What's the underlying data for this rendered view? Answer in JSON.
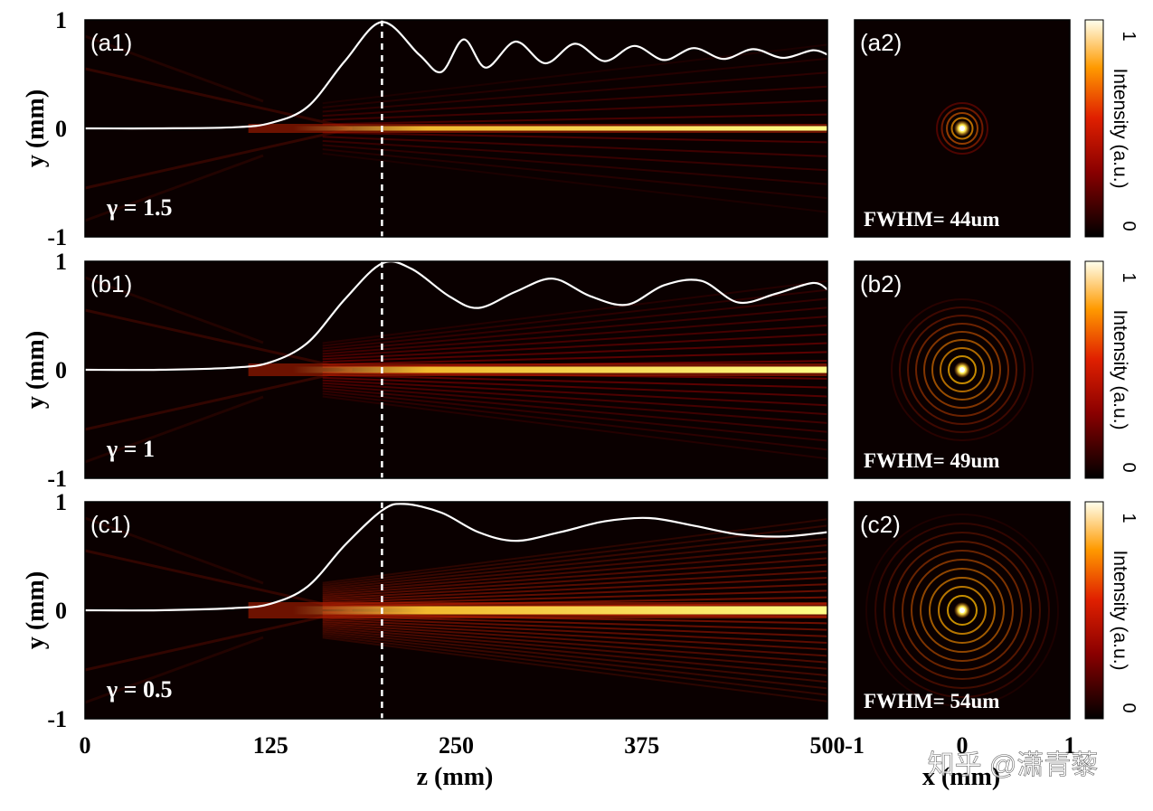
{
  "figure": {
    "xlabel": "z (mm)",
    "ylabel": "y (mm)",
    "x2label": "x (mm)",
    "colorbar_label": "Intensity (a.u.)",
    "watermark": "知乎 @潇青藜"
  },
  "chart_data": [
    {
      "type": "heatmap",
      "panel": "(a1)",
      "annotation": "γ = 1.5",
      "gamma": 1.5,
      "xlabel": "z (mm)",
      "ylabel": "y (mm)",
      "xlim": [
        0,
        500
      ],
      "ylim": [
        -1,
        1
      ],
      "xticks": [
        "0",
        "125",
        "250",
        "375",
        "500"
      ],
      "yticks": [
        "1",
        "0",
        "-1"
      ],
      "marker_line_z": 200,
      "colormap": "hot",
      "overlay_curve": {
        "description": "normalized on-axis intensity",
        "z": [
          0,
          50,
          100,
          125,
          150,
          175,
          200,
          225,
          240,
          255,
          270,
          290,
          310,
          330,
          350,
          370,
          390,
          410,
          430,
          450,
          470,
          490,
          500
        ],
        "y": [
          0,
          0,
          0.01,
          0.05,
          0.2,
          0.62,
          0.98,
          0.68,
          0.52,
          0.82,
          0.56,
          0.8,
          0.6,
          0.78,
          0.62,
          0.76,
          0.63,
          0.74,
          0.64,
          0.73,
          0.65,
          0.72,
          0.68
        ]
      }
    },
    {
      "type": "heatmap",
      "panel": "(b1)",
      "annotation": "γ = 1",
      "gamma": 1,
      "xlabel": "z (mm)",
      "ylabel": "y (mm)",
      "xlim": [
        0,
        500
      ],
      "ylim": [
        -1,
        1
      ],
      "xticks": [
        "0",
        "125",
        "250",
        "375",
        "500"
      ],
      "yticks": [
        "1",
        "0",
        "-1"
      ],
      "marker_line_z": 200,
      "colormap": "hot",
      "overlay_curve": {
        "description": "normalized on-axis intensity",
        "z": [
          0,
          50,
          100,
          125,
          150,
          175,
          200,
          220,
          245,
          265,
          290,
          315,
          340,
          365,
          390,
          415,
          440,
          465,
          490,
          500
        ],
        "y": [
          0,
          0,
          0.02,
          0.07,
          0.25,
          0.65,
          0.98,
          0.93,
          0.68,
          0.57,
          0.72,
          0.84,
          0.68,
          0.6,
          0.78,
          0.82,
          0.62,
          0.7,
          0.8,
          0.74
        ]
      }
    },
    {
      "type": "heatmap",
      "panel": "(c1)",
      "annotation": "γ = 0.5",
      "gamma": 0.5,
      "xlabel": "z (mm)",
      "ylabel": "y (mm)",
      "xlim": [
        0,
        500
      ],
      "ylim": [
        -1,
        1
      ],
      "xticks": [
        "0",
        "125",
        "250",
        "375",
        "500"
      ],
      "yticks": [
        "1",
        "0",
        "-1"
      ],
      "marker_line_z": 200,
      "colormap": "hot",
      "overlay_curve": {
        "description": "normalized on-axis intensity",
        "z": [
          0,
          50,
          100,
          125,
          150,
          175,
          200,
          215,
          240,
          265,
          290,
          320,
          350,
          380,
          410,
          440,
          470,
          500
        ],
        "y": [
          0,
          0,
          0.02,
          0.06,
          0.22,
          0.6,
          0.92,
          0.98,
          0.9,
          0.72,
          0.64,
          0.72,
          0.82,
          0.85,
          0.78,
          0.7,
          0.68,
          0.72
        ]
      }
    },
    {
      "type": "heatmap",
      "panel": "(a2)",
      "annotation": "FWHM= 44um",
      "xlabel": "x (mm)",
      "xlim": [
        -1,
        1
      ],
      "ylim": [
        -1,
        1
      ],
      "xticks": [
        "-1",
        "0",
        "1"
      ],
      "ring_count": 4,
      "colorbar": {
        "label": "Intensity (a.u.)",
        "range": [
          0,
          1
        ],
        "ticks": [
          "1",
          "0"
        ]
      }
    },
    {
      "type": "heatmap",
      "panel": "(b2)",
      "annotation": "FWHM= 49um",
      "xlabel": "x (mm)",
      "xlim": [
        -1,
        1
      ],
      "ylim": [
        -1,
        1
      ],
      "xticks": [
        "-1",
        "0",
        "1"
      ],
      "ring_count": 8,
      "colorbar": {
        "label": "Intensity (a.u.)",
        "range": [
          0,
          1
        ],
        "ticks": [
          "1",
          "0"
        ]
      }
    },
    {
      "type": "heatmap",
      "panel": "(c2)",
      "annotation": "FWHM= 54um",
      "xlabel": "x (mm)",
      "xlim": [
        -1,
        1
      ],
      "ylim": [
        -1,
        1
      ],
      "xticks": [
        "-1",
        "0",
        "1"
      ],
      "ring_count": 10,
      "colorbar": {
        "label": "Intensity (a.u.)",
        "range": [
          0,
          1
        ],
        "ticks": [
          "1",
          "0"
        ]
      }
    }
  ]
}
